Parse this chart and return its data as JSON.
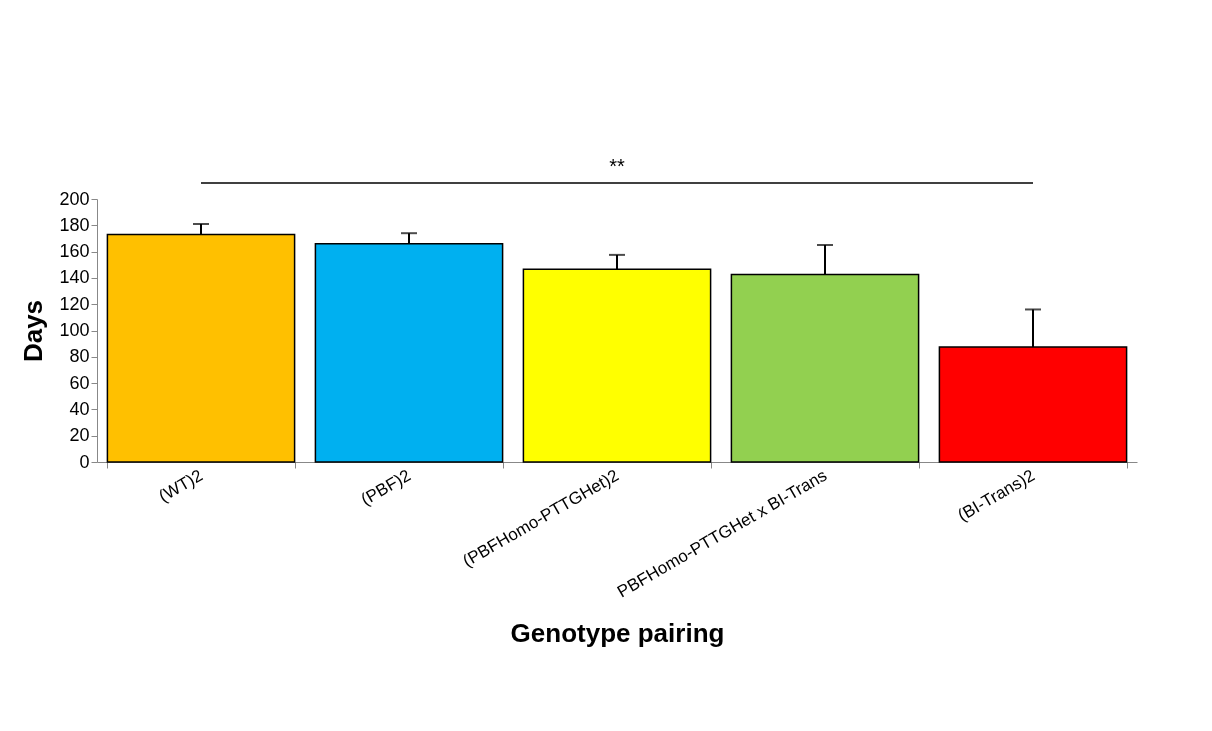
{
  "chart_data": {
    "type": "bar",
    "xlabel": "Genotype pairing",
    "ylabel": "Days",
    "categories": [
      "(WT)2",
      "(PBF)2",
      "(PBFHomo-PTTGHet)2",
      "PBFHomo-PTTGHet x BI-Trans",
      "(BI-Trans)2"
    ],
    "values": [
      173,
      166,
      146.5,
      142.5,
      87.5
    ],
    "colors": [
      "#ffc000",
      "#00b0f0",
      "#ffff00",
      "#92d050",
      "#ff0000"
    ],
    "errors": [
      [
        173,
        181
      ],
      [
        166,
        174
      ],
      [
        146.5,
        157.5
      ],
      [
        142.5,
        165
      ],
      [
        87.5,
        116
      ]
    ],
    "ylim": [
      0,
      200
    ],
    "yticks": [
      0,
      20,
      40,
      60,
      80,
      100,
      120,
      140,
      160,
      180,
      200
    ],
    "grid": false,
    "annotations": [
      "**"
    ]
  }
}
